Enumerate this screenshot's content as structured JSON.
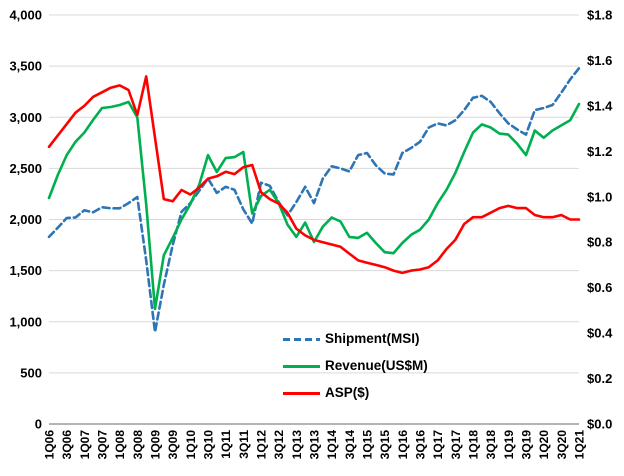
{
  "chart_data": {
    "type": "line",
    "title": "",
    "categories_count": 61,
    "x_first": "1Q06",
    "x_last": "1Q21",
    "x_tick_every": 2,
    "x_tick_labels": [
      "1Q06",
      "3Q06",
      "1Q07",
      "3Q07",
      "1Q08",
      "3Q08",
      "1Q09",
      "3Q09",
      "1Q10",
      "3Q10",
      "1Q11",
      "3Q11",
      "1Q12",
      "3Q12",
      "1Q13",
      "3Q13",
      "1Q14",
      "3Q14",
      "1Q15",
      "3Q15",
      "1Q16",
      "3Q16",
      "1Q17",
      "3Q17",
      "1Q18",
      "3Q18",
      "1Q19",
      "3Q19",
      "1Q20",
      "3Q20",
      "1Q21"
    ],
    "left_axis": {
      "min": 0,
      "max": 4000,
      "tick_labels": [
        "4,000",
        "3,500",
        "3,000",
        "2,500",
        "2,000",
        "1,500",
        "1,000",
        "500",
        "0"
      ]
    },
    "right_axis": {
      "min": 0,
      "max": 1.8,
      "tick_labels": [
        "$1.8",
        "$1.6",
        "$1.4",
        "$1.2",
        "$1.0",
        "$0.8",
        "$0.6",
        "$0.4",
        "$0.2",
        "$0.0"
      ]
    },
    "grid": true,
    "gridline_color": "#D9D9D9",
    "axis_line_color": "#9B9B9B",
    "legend_position": "inside-bottom-center",
    "series": [
      {
        "name": "Shipment(MSI)",
        "axis": "left",
        "color": "#2E75B6",
        "style": "dashed",
        "values": [
          1830,
          1920,
          2015,
          2020,
          2090,
          2070,
          2120,
          2110,
          2110,
          2160,
          2220,
          1600,
          900,
          1360,
          1750,
          2075,
          2160,
          2280,
          2400,
          2260,
          2320,
          2290,
          2100,
          1960,
          2360,
          2330,
          2170,
          2040,
          2170,
          2320,
          2160,
          2400,
          2520,
          2500,
          2470,
          2630,
          2650,
          2530,
          2450,
          2440,
          2650,
          2700,
          2760,
          2900,
          2940,
          2920,
          2970,
          3070,
          3190,
          3210,
          3150,
          3040,
          2940,
          2880,
          2830,
          3070,
          3090,
          3120,
          3240,
          3370,
          3480
        ]
      },
      {
        "name": "Revenue(US$M)",
        "axis": "left",
        "color": "#00B050",
        "style": "solid",
        "values": [
          2210,
          2435,
          2630,
          2760,
          2850,
          2975,
          3090,
          3100,
          3120,
          3150,
          3000,
          2150,
          1125,
          1650,
          1820,
          2000,
          2150,
          2340,
          2630,
          2465,
          2600,
          2610,
          2660,
          2060,
          2230,
          2290,
          2160,
          1950,
          1830,
          1970,
          1780,
          1930,
          2020,
          1980,
          1830,
          1820,
          1870,
          1770,
          1680,
          1670,
          1770,
          1850,
          1900,
          2000,
          2160,
          2290,
          2455,
          2660,
          2850,
          2930,
          2900,
          2840,
          2830,
          2740,
          2630,
          2870,
          2800,
          2870,
          2920,
          2970,
          3130
        ]
      },
      {
        "name": "ASP($)",
        "axis": "right",
        "color": "#FF0000",
        "style": "solid",
        "values": [
          1.22,
          1.27,
          1.32,
          1.37,
          1.4,
          1.44,
          1.46,
          1.48,
          1.49,
          1.47,
          1.36,
          1.53,
          1.26,
          0.99,
          0.98,
          1.03,
          1.01,
          1.04,
          1.08,
          1.09,
          1.11,
          1.1,
          1.13,
          1.14,
          1.02,
          0.99,
          0.97,
          0.93,
          0.86,
          0.83,
          0.81,
          0.8,
          0.79,
          0.78,
          0.75,
          0.72,
          0.71,
          0.7,
          0.69,
          0.675,
          0.665,
          0.675,
          0.68,
          0.69,
          0.72,
          0.77,
          0.81,
          0.88,
          0.91,
          0.91,
          0.93,
          0.95,
          0.96,
          0.95,
          0.95,
          0.92,
          0.91,
          0.91,
          0.92,
          0.9,
          0.9
        ]
      }
    ]
  },
  "legend": {
    "items": [
      {
        "label": "Shipment(MSI)"
      },
      {
        "label": "Revenue(US$M)"
      },
      {
        "label": "ASP($)"
      }
    ]
  }
}
